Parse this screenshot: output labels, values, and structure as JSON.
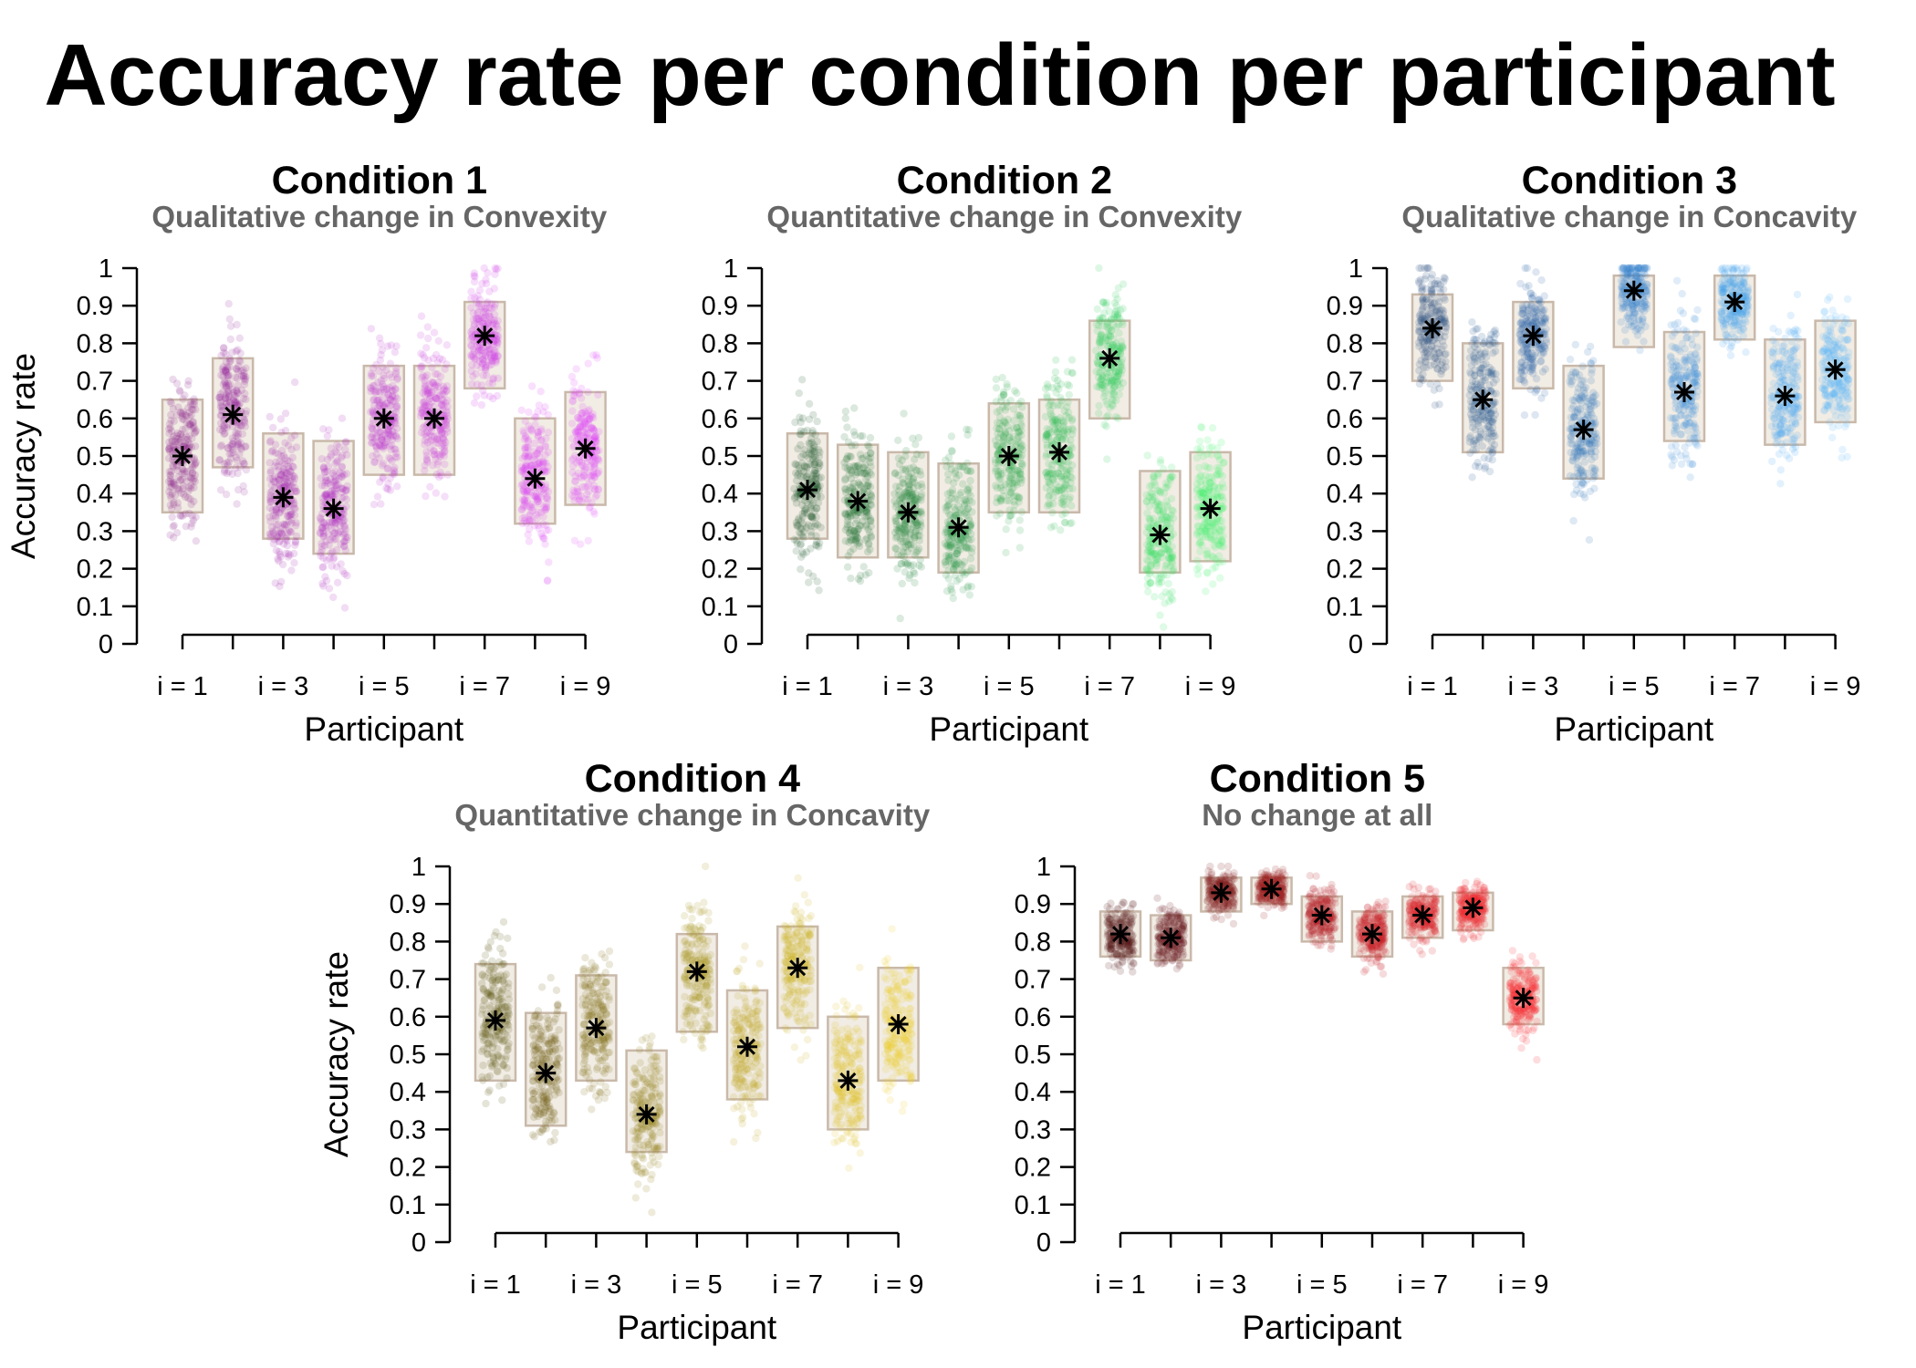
{
  "title": "Accuracy rate per condition per participant",
  "chart_data": [
    {
      "type": "scatter",
      "title": "Condition 1",
      "subtitle": "Qualitative change in Convexity",
      "xlabel": "Participant",
      "ylabel": "Accuracy rate",
      "ylim": [
        0,
        1
      ],
      "yticks": [
        "0",
        "0.1",
        "0.2",
        "0.3",
        "0.4",
        "0.5",
        "0.6",
        "0.7",
        "0.8",
        "0.9",
        "1"
      ],
      "xticks": [
        "i = 1",
        "i = 3",
        "i = 5",
        "i = 7",
        "i = 9"
      ],
      "participants": [
        1,
        2,
        3,
        4,
        5,
        6,
        7,
        8,
        9
      ],
      "means": [
        0.5,
        0.61,
        0.39,
        0.36,
        0.6,
        0.6,
        0.82,
        0.44,
        0.52
      ],
      "interval_low": [
        0.35,
        0.47,
        0.28,
        0.24,
        0.45,
        0.45,
        0.68,
        0.32,
        0.37
      ],
      "interval_high": [
        0.65,
        0.76,
        0.56,
        0.54,
        0.74,
        0.74,
        0.91,
        0.6,
        0.67
      ],
      "colors": [
        "#861d87",
        "#93239a",
        "#a128ae",
        "#ad2dbf",
        "#b932cc",
        "#c436d9",
        "#cf3ae5",
        "#d93ef0",
        "#e243f8"
      ]
    },
    {
      "type": "scatter",
      "title": "Condition 2",
      "subtitle": "Quantitative change in Convexity",
      "xlabel": "Participant",
      "ylabel": "",
      "ylim": [
        0,
        1
      ],
      "yticks": [
        "0",
        "0.1",
        "0.2",
        "0.3",
        "0.4",
        "0.5",
        "0.6",
        "0.7",
        "0.8",
        "0.9",
        "1"
      ],
      "xticks": [
        "i = 1",
        "i = 3",
        "i = 5",
        "i = 7",
        "i = 9"
      ],
      "participants": [
        1,
        2,
        3,
        4,
        5,
        6,
        7,
        8,
        9
      ],
      "means": [
        0.41,
        0.38,
        0.35,
        0.31,
        0.5,
        0.51,
        0.76,
        0.29,
        0.36
      ],
      "interval_low": [
        0.28,
        0.23,
        0.23,
        0.19,
        0.35,
        0.35,
        0.6,
        0.19,
        0.22
      ],
      "interval_high": [
        0.56,
        0.53,
        0.51,
        0.48,
        0.64,
        0.65,
        0.86,
        0.46,
        0.51
      ],
      "colors": [
        "#1e5a2e",
        "#1f6d34",
        "#22803b",
        "#259443",
        "#29a84b",
        "#2ebb53",
        "#33cf5b",
        "#38e063",
        "#3ff06b"
      ]
    },
    {
      "type": "scatter",
      "title": "Condition 3",
      "subtitle": "Qualitative change in Concavity",
      "xlabel": "Participant",
      "ylabel": "",
      "ylim": [
        0,
        1
      ],
      "yticks": [
        "0",
        "0.1",
        "0.2",
        "0.3",
        "0.4",
        "0.5",
        "0.6",
        "0.7",
        "0.8",
        "0.9",
        "1"
      ],
      "xticks": [
        "i = 1",
        "i = 3",
        "i = 5",
        "i = 7",
        "i = 9"
      ],
      "participants": [
        1,
        2,
        3,
        4,
        5,
        6,
        7,
        8,
        9
      ],
      "means": [
        0.84,
        0.65,
        0.82,
        0.57,
        0.94,
        0.67,
        0.91,
        0.66,
        0.73
      ],
      "interval_low": [
        0.7,
        0.51,
        0.68,
        0.44,
        0.79,
        0.54,
        0.81,
        0.53,
        0.59
      ],
      "interval_high": [
        0.93,
        0.8,
        0.91,
        0.74,
        0.98,
        0.83,
        0.98,
        0.81,
        0.86
      ],
      "colors": [
        "#24497e",
        "#285891",
        "#2c66a5",
        "#3174b8",
        "#3783cb",
        "#3d91dc",
        "#449feb",
        "#4caaf5",
        "#56b4fb"
      ]
    },
    {
      "type": "scatter",
      "title": "Condition 4",
      "subtitle": "Quantitative change in Concavity",
      "xlabel": "Participant",
      "ylabel": "Accuracy rate",
      "ylim": [
        0,
        1
      ],
      "yticks": [
        "0",
        "0.1",
        "0.2",
        "0.3",
        "0.4",
        "0.5",
        "0.6",
        "0.7",
        "0.8",
        "0.9",
        "1"
      ],
      "xticks": [
        "i = 1",
        "i = 3",
        "i = 5",
        "i = 7",
        "i = 9"
      ],
      "participants": [
        1,
        2,
        3,
        4,
        5,
        6,
        7,
        8,
        9
      ],
      "means": [
        0.59,
        0.45,
        0.57,
        0.34,
        0.72,
        0.52,
        0.73,
        0.43,
        0.58
      ],
      "interval_low": [
        0.43,
        0.31,
        0.43,
        0.24,
        0.56,
        0.38,
        0.57,
        0.3,
        0.43
      ],
      "interval_high": [
        0.74,
        0.61,
        0.71,
        0.51,
        0.82,
        0.67,
        0.84,
        0.6,
        0.73
      ],
      "colors": [
        "#5d5412",
        "#6e6015",
        "#807019",
        "#93811c",
        "#a99720",
        "#bea823",
        "#d0b626",
        "#e0c228",
        "#efcc2a"
      ]
    },
    {
      "type": "scatter",
      "title": "Condition 5",
      "subtitle": "No change at all",
      "xlabel": "Participant",
      "ylabel": "",
      "ylim": [
        0,
        1
      ],
      "yticks": [
        "0",
        "0.1",
        "0.2",
        "0.3",
        "0.4",
        "0.5",
        "0.6",
        "0.7",
        "0.8",
        "0.9",
        "1"
      ],
      "xticks": [
        "i = 1",
        "i = 3",
        "i = 5",
        "i = 7",
        "i = 9"
      ],
      "participants": [
        1,
        2,
        3,
        4,
        5,
        6,
        7,
        8,
        9
      ],
      "means": [
        0.82,
        0.81,
        0.93,
        0.94,
        0.87,
        0.82,
        0.87,
        0.89,
        0.65
      ],
      "interval_low": [
        0.76,
        0.75,
        0.88,
        0.9,
        0.8,
        0.76,
        0.81,
        0.83,
        0.58
      ],
      "interval_high": [
        0.88,
        0.87,
        0.97,
        0.97,
        0.92,
        0.88,
        0.92,
        0.93,
        0.73
      ],
      "colors": [
        "#561718",
        "#6b1a1c",
        "#821d1f",
        "#9a1f22",
        "#b22024",
        "#c82227",
        "#dc242a",
        "#ec262d",
        "#fb2a31"
      ]
    }
  ]
}
